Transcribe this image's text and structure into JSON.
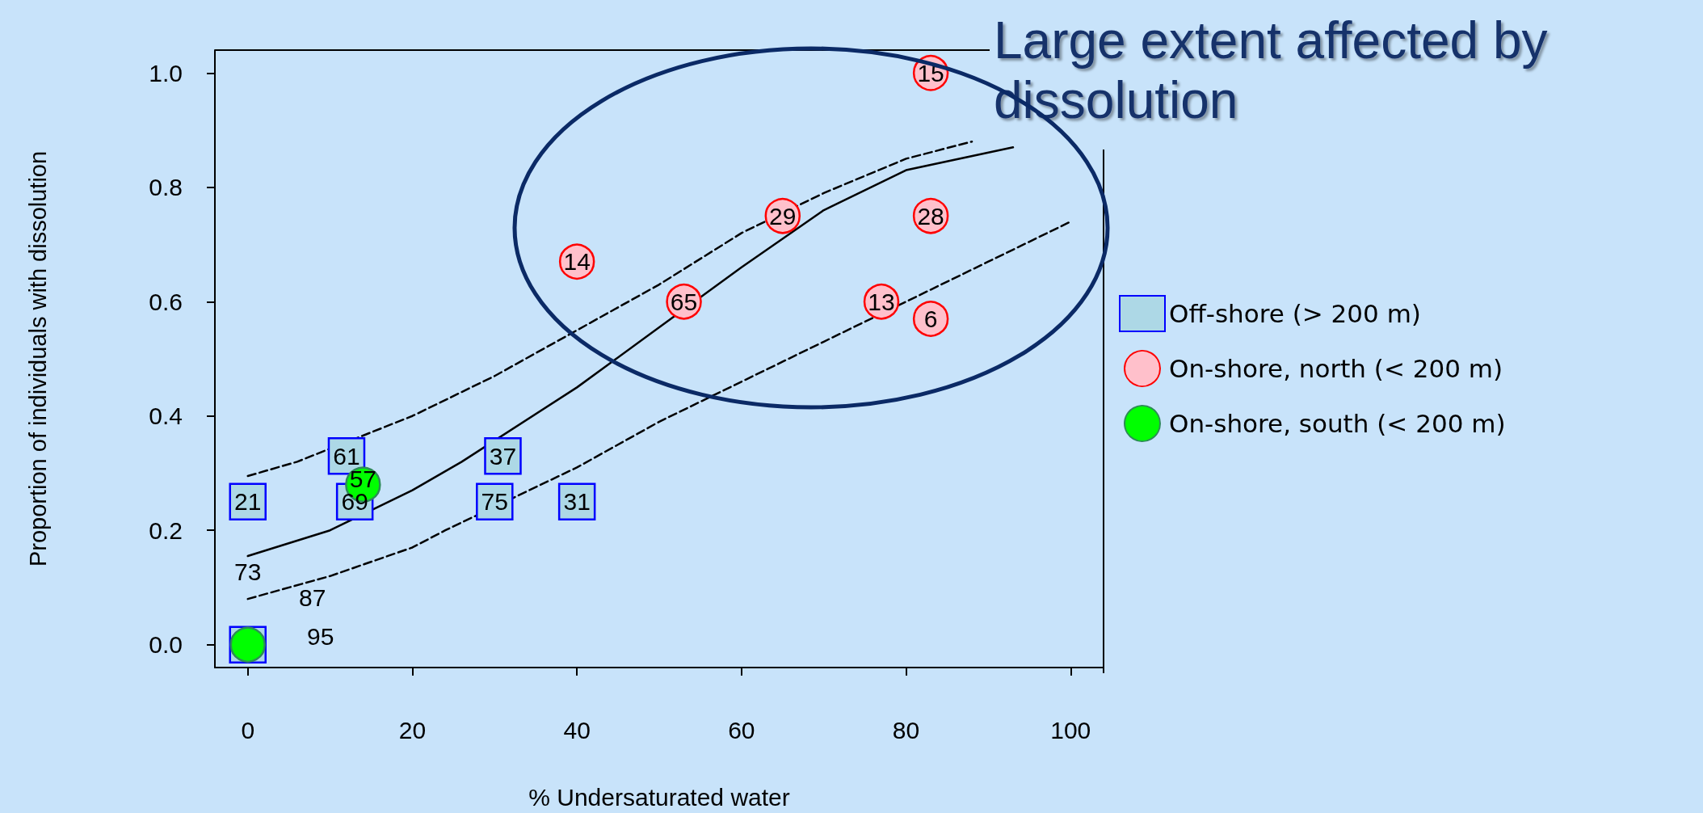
{
  "chart_data": {
    "type": "scatter",
    "title": "Large extent affected by dissolution",
    "xlabel": "% Undersaturated water",
    "ylabel": "Proportion of individuals with dissolution",
    "xlim": [
      -4,
      104
    ],
    "ylim": [
      -0.04,
      1.04
    ],
    "xticks": [
      0,
      20,
      40,
      60,
      80,
      100
    ],
    "yticks": [
      {
        "value": 0,
        "label": "0.0"
      },
      {
        "value": 0.2,
        "label": "0.2"
      },
      {
        "value": 0.4,
        "label": "0.4"
      },
      {
        "value": 0.6,
        "label": "0.6"
      },
      {
        "value": 0.8,
        "label": "0.8"
      },
      {
        "value": 1,
        "label": "1.0"
      }
    ],
    "legend": "right",
    "series": [
      {
        "name": "Off-shore (> 200 m)",
        "color": "#add8e6",
        "marker": "square",
        "x": [
          0,
          12,
          13,
          31,
          30,
          40,
          0
        ],
        "values": [
          0.25,
          0.33,
          0.25,
          0.33,
          0.25,
          0.25,
          0
        ]
      },
      {
        "name": "On-shore, north (< 200 m)",
        "color": "#ffc0cb",
        "marker": "circle",
        "x": [
          83,
          65,
          83,
          40,
          53,
          77,
          83
        ],
        "values": [
          1.0,
          0.75,
          0.75,
          0.67,
          0.6,
          0.6,
          0.57
        ]
      },
      {
        "name": "On-shore, south (< 200 m)",
        "color": "#00ff00",
        "marker": "circle",
        "x": [
          14,
          0
        ],
        "values": [
          0.28,
          0
        ]
      },
      {
        "type": "line",
        "color": "#000000",
        "marker": "none",
        "line_style": "solid",
        "x": [
          0,
          10,
          20,
          26,
          40,
          50,
          60,
          70,
          80,
          93
        ],
        "values": [
          0.155,
          0.2,
          0.27,
          0.32,
          0.45,
          0.555,
          0.66,
          0.76,
          0.83,
          0.87
        ]
      },
      {
        "type": "line",
        "color": "#000000",
        "marker": "none",
        "line_style": "dashed",
        "x": [
          0,
          6,
          20,
          30,
          40,
          50,
          60,
          70,
          80,
          88
        ],
        "values": [
          0.295,
          0.32,
          0.4,
          0.47,
          0.55,
          0.63,
          0.72,
          0.79,
          0.85,
          0.88
        ]
      },
      {
        "type": "line",
        "color": "#000000",
        "marker": "none",
        "line_style": "dashed",
        "x": [
          0,
          10,
          20,
          24,
          40,
          50,
          60,
          70,
          80,
          90,
          100
        ],
        "values": [
          0.08,
          0.12,
          0.17,
          0.2,
          0.31,
          0.39,
          0.46,
          0.53,
          0.6,
          0.67,
          0.74
        ]
      }
    ],
    "annotations": [
      {
        "text": "21",
        "x": 0,
        "y": 0.25
      },
      {
        "text": "61",
        "x": 12,
        "y": 0.33
      },
      {
        "text": "69",
        "x": 13,
        "y": 0.25
      },
      {
        "text": "37",
        "x": 31,
        "y": 0.33
      },
      {
        "text": "75",
        "x": 30,
        "y": 0.25
      },
      {
        "text": "31",
        "x": 40,
        "y": 0.25
      },
      {
        "text": "15",
        "x": 83,
        "y": 1.0
      },
      {
        "text": "29",
        "x": 65,
        "y": 0.75
      },
      {
        "text": "28",
        "x": 83,
        "y": 0.75
      },
      {
        "text": "14",
        "x": 40,
        "y": 0.67
      },
      {
        "text": "65",
        "x": 53,
        "y": 0.6
      },
      {
        "text": "13",
        "x": 77,
        "y": 0.6
      },
      {
        "text": "6",
        "x": 83,
        "y": 0.57
      },
      {
        "text": "57",
        "x": 14,
        "y": 0.28
      },
      "73",
      "87",
      "95"
    ]
  }
}
